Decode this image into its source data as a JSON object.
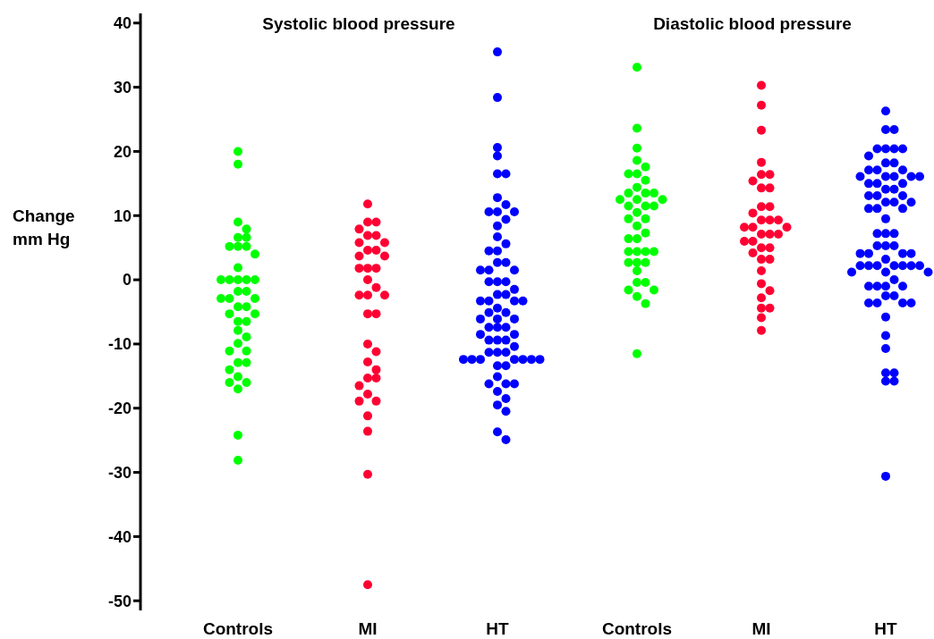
{
  "chart_data": [
    {
      "type": "scatter",
      "title": "Systolic blood pressure",
      "ylabel": "Change mm Hg",
      "categories": [
        "Controls",
        "MI",
        "HT"
      ],
      "ylim": [
        -51.5,
        41.5
      ],
      "yticks": [
        -50,
        -40,
        -30,
        -20,
        -10,
        0,
        10,
        20,
        30,
        40
      ],
      "grid": false,
      "legend": false,
      "marker": "circle",
      "series": [
        {
          "color": "#00ff00",
          "x": [
            "Controls",
            "Controls",
            "Controls",
            "Controls",
            "Controls",
            "Controls",
            "Controls",
            "Controls",
            "Controls",
            "Controls",
            "Controls",
            "Controls",
            "Controls",
            "Controls",
            "Controls",
            "Controls",
            "Controls",
            "Controls",
            "Controls",
            "Controls",
            "Controls",
            "Controls",
            "Controls",
            "Controls",
            "Controls",
            "Controls",
            "Controls",
            "Controls",
            "Controls",
            "Controls",
            "Controls",
            "Controls",
            "Controls",
            "Controls",
            "Controls",
            "Controls",
            "Controls",
            "Controls",
            "Controls",
            "Controls",
            "Controls"
          ],
          "values": [
            20.0,
            18.0,
            9.0,
            7.9,
            6.6,
            6.6,
            5.2,
            5.2,
            5.2,
            4.0,
            1.9,
            0,
            0,
            0,
            0,
            0,
            -1.8,
            -1.8,
            -2.9,
            -2.9,
            -2.9,
            -4.2,
            -4.2,
            -5.3,
            -5.3,
            -6.5,
            -6.5,
            -7.9,
            -8.9,
            -9.9,
            -11.1,
            -11.1,
            -12.9,
            -12.9,
            -14.0,
            -15.1,
            -16.0,
            -16.0,
            -17.0,
            -24.2,
            -28.1
          ]
        },
        {
          "color": "#ff0033",
          "x": [
            "MI",
            "MI",
            "MI",
            "MI",
            "MI",
            "MI",
            "MI",
            "MI",
            "MI",
            "MI",
            "MI",
            "MI",
            "MI",
            "MI",
            "MI",
            "MI",
            "MI",
            "MI",
            "MI",
            "MI",
            "MI",
            "MI",
            "MI",
            "MI",
            "MI",
            "MI",
            "MI",
            "MI",
            "MI",
            "MI",
            "MI",
            "MI",
            "MI",
            "MI",
            "MI",
            "MI"
          ],
          "values": [
            11.8,
            9.0,
            9.0,
            7.9,
            6.9,
            6.9,
            5.8,
            5.8,
            4.6,
            4.6,
            3.7,
            1.8,
            1.8,
            1.8,
            0,
            -1.2,
            -2.4,
            -2.4,
            -2.4,
            -5.3,
            -5.3,
            -10.0,
            -11.2,
            -12.8,
            -14.0,
            -15.3,
            -15.3,
            -16.5,
            -17.8,
            -18.9,
            -18.9,
            -21.2,
            -23.6,
            -30.3,
            -47.5,
            3.7
          ]
        },
        {
          "color": "#0000ff",
          "x": [
            "HT",
            "HT",
            "HT",
            "HT",
            "HT",
            "HT",
            "HT",
            "HT",
            "HT",
            "HT",
            "HT",
            "HT",
            "HT",
            "HT",
            "HT",
            "HT",
            "HT",
            "HT",
            "HT",
            "HT",
            "HT",
            "HT",
            "HT",
            "HT",
            "HT",
            "HT",
            "HT",
            "HT",
            "HT",
            "HT",
            "HT",
            "HT",
            "HT",
            "HT",
            "HT",
            "HT",
            "HT",
            "HT",
            "HT",
            "HT",
            "HT",
            "HT",
            "HT",
            "HT",
            "HT",
            "HT",
            "HT",
            "HT",
            "HT",
            "HT",
            "HT",
            "HT",
            "HT",
            "HT",
            "HT",
            "HT",
            "HT",
            "HT",
            "HT",
            "HT",
            "HT",
            "HT",
            "HT",
            "HT",
            "HT",
            "HT",
            "HT",
            "HT",
            "HT"
          ],
          "values": [
            35.5,
            28.4,
            20.6,
            19.3,
            16.5,
            16.5,
            12.8,
            11.7,
            10.6,
            10.6,
            10.6,
            9.4,
            8.4,
            6.7,
            5.6,
            4.5,
            4.5,
            2.7,
            2.7,
            1.5,
            1.5,
            1.5,
            -0.3,
            -0.3,
            -0.3,
            -1.5,
            -2.3,
            -2.3,
            -3.3,
            -3.3,
            -3.3,
            -3.3,
            -4.4,
            -5.1,
            -5.1,
            -6.1,
            -6.1,
            -6.1,
            -7.4,
            -7.4,
            -7.4,
            -8.5,
            -8.5,
            -9.4,
            -9.4,
            -9.4,
            -10.4,
            -11.3,
            -11.3,
            -11.3,
            -12.4,
            -12.4,
            -12.4,
            -12.4,
            -12.4,
            -12.4,
            -12.4,
            -13.4,
            -13.4,
            -15.1,
            -16.2,
            -16.2,
            -16.2,
            -17.4,
            -18.5,
            -19.5,
            -20.5,
            -23.7,
            -24.9
          ]
        }
      ]
    },
    {
      "type": "scatter",
      "title": "Diastolic blood pressure",
      "categories": [
        "Controls",
        "MI",
        "HT"
      ],
      "ylim": [
        -50,
        40
      ],
      "yticks": [
        -50,
        -40,
        -30,
        -20,
        -10,
        0,
        10,
        20,
        30,
        40
      ],
      "tick_labels": "x",
      "grid": false,
      "legend": false,
      "marker": "circle",
      "series": [
        {
          "color": "#00ff00",
          "x": [
            "Controls",
            "Controls",
            "Controls",
            "Controls",
            "Controls",
            "Controls",
            "Controls",
            "Controls",
            "Controls",
            "Controls",
            "Controls",
            "Controls",
            "Controls",
            "Controls",
            "Controls",
            "Controls",
            "Controls",
            "Controls",
            "Controls",
            "Controls",
            "Controls",
            "Controls",
            "Controls",
            "Controls",
            "Controls",
            "Controls",
            "Controls",
            "Controls",
            "Controls",
            "Controls",
            "Controls",
            "Controls",
            "Controls",
            "Controls",
            "Controls",
            "Controls",
            "Controls",
            "Controls",
            "Controls",
            "Controls"
          ],
          "values": [
            33.1,
            23.6,
            20.5,
            18.6,
            17.6,
            16.5,
            16.5,
            15.5,
            14.4,
            13.5,
            13.5,
            13.5,
            12.5,
            12.5,
            12.5,
            11.5,
            11.5,
            11.5,
            10.5,
            9.5,
            9.5,
            8.4,
            7.3,
            6.4,
            6.4,
            4.4,
            4.4,
            4.4,
            4.4,
            2.7,
            2.7,
            2.7,
            1.4,
            -0.4,
            -0.4,
            -1.6,
            -1.6,
            -2.6,
            -3.7,
            -11.5
          ]
        },
        {
          "color": "#ff0033",
          "x": [
            "MI",
            "MI",
            "MI",
            "MI",
            "MI",
            "MI",
            "MI",
            "MI",
            "MI",
            "MI",
            "MI",
            "MI",
            "MI",
            "MI",
            "MI",
            "MI",
            "MI",
            "MI",
            "MI",
            "MI",
            "MI",
            "MI",
            "MI",
            "MI",
            "MI",
            "MI",
            "MI",
            "MI",
            "MI",
            "MI",
            "MI",
            "MI",
            "MI",
            "MI",
            "MI",
            "MI"
          ],
          "values": [
            30.3,
            27.2,
            23.3,
            18.3,
            16.4,
            16.4,
            15.4,
            14.3,
            14.3,
            11.4,
            11.4,
            10.4,
            9.3,
            9.3,
            9.3,
            8.2,
            8.2,
            8.2,
            7.1,
            7.1,
            7.1,
            6.0,
            6.0,
            5.0,
            5.0,
            4.2,
            3.2,
            3.2,
            1.4,
            -0.6,
            -1.7,
            -2.8,
            -4.4,
            -4.4,
            -5.9,
            -7.9
          ]
        },
        {
          "color": "#0000ff",
          "x": [
            "HT",
            "HT",
            "HT",
            "HT",
            "HT",
            "HT",
            "HT",
            "HT",
            "HT",
            "HT",
            "HT",
            "HT",
            "HT",
            "HT",
            "HT",
            "HT",
            "HT",
            "HT",
            "HT",
            "HT",
            "HT",
            "HT",
            "HT",
            "HT",
            "HT",
            "HT",
            "HT",
            "HT",
            "HT",
            "HT",
            "HT",
            "HT",
            "HT",
            "HT",
            "HT",
            "HT",
            "HT",
            "HT",
            "HT",
            "HT",
            "HT",
            "HT",
            "HT",
            "HT",
            "HT",
            "HT",
            "HT",
            "HT",
            "HT",
            "HT",
            "HT",
            "HT",
            "HT",
            "HT",
            "HT",
            "HT",
            "HT",
            "HT",
            "HT",
            "HT",
            "HT",
            "HT",
            "HT",
            "HT",
            "HT",
            "HT",
            "HT",
            "HT",
            "HT",
            "HT",
            "HT",
            "HT",
            "HT"
          ],
          "values": [
            26.3,
            23.4,
            23.4,
            20.4,
            20.4,
            20.4,
            20.4,
            19.3,
            18.2,
            18.2,
            17.1,
            17.1,
            17.1,
            16.1,
            16.1,
            16.1,
            16.1,
            16.1,
            15.0,
            15.0,
            15.0,
            14.1,
            14.1,
            13.1,
            13.1,
            13.1,
            12.1,
            12.1,
            12.1,
            11.1,
            11.1,
            11.1,
            9.5,
            7.2,
            7.2,
            7.2,
            5.3,
            5.3,
            5.3,
            4.1,
            4.1,
            4.1,
            4.1,
            3.2,
            2.2,
            2.2,
            2.2,
            2.2,
            2.2,
            2.2,
            2.2,
            1.2,
            1.2,
            1.2,
            0.0,
            -1.0,
            -1.0,
            -1.0,
            -1.0,
            -2.5,
            -2.5,
            -3.6,
            -3.6,
            -3.6,
            -3.6,
            -5.8,
            -8.7,
            -10.7,
            -14.5,
            -15.8,
            -30.6,
            -15.8,
            -14.5
          ]
        }
      ]
    }
  ]
}
